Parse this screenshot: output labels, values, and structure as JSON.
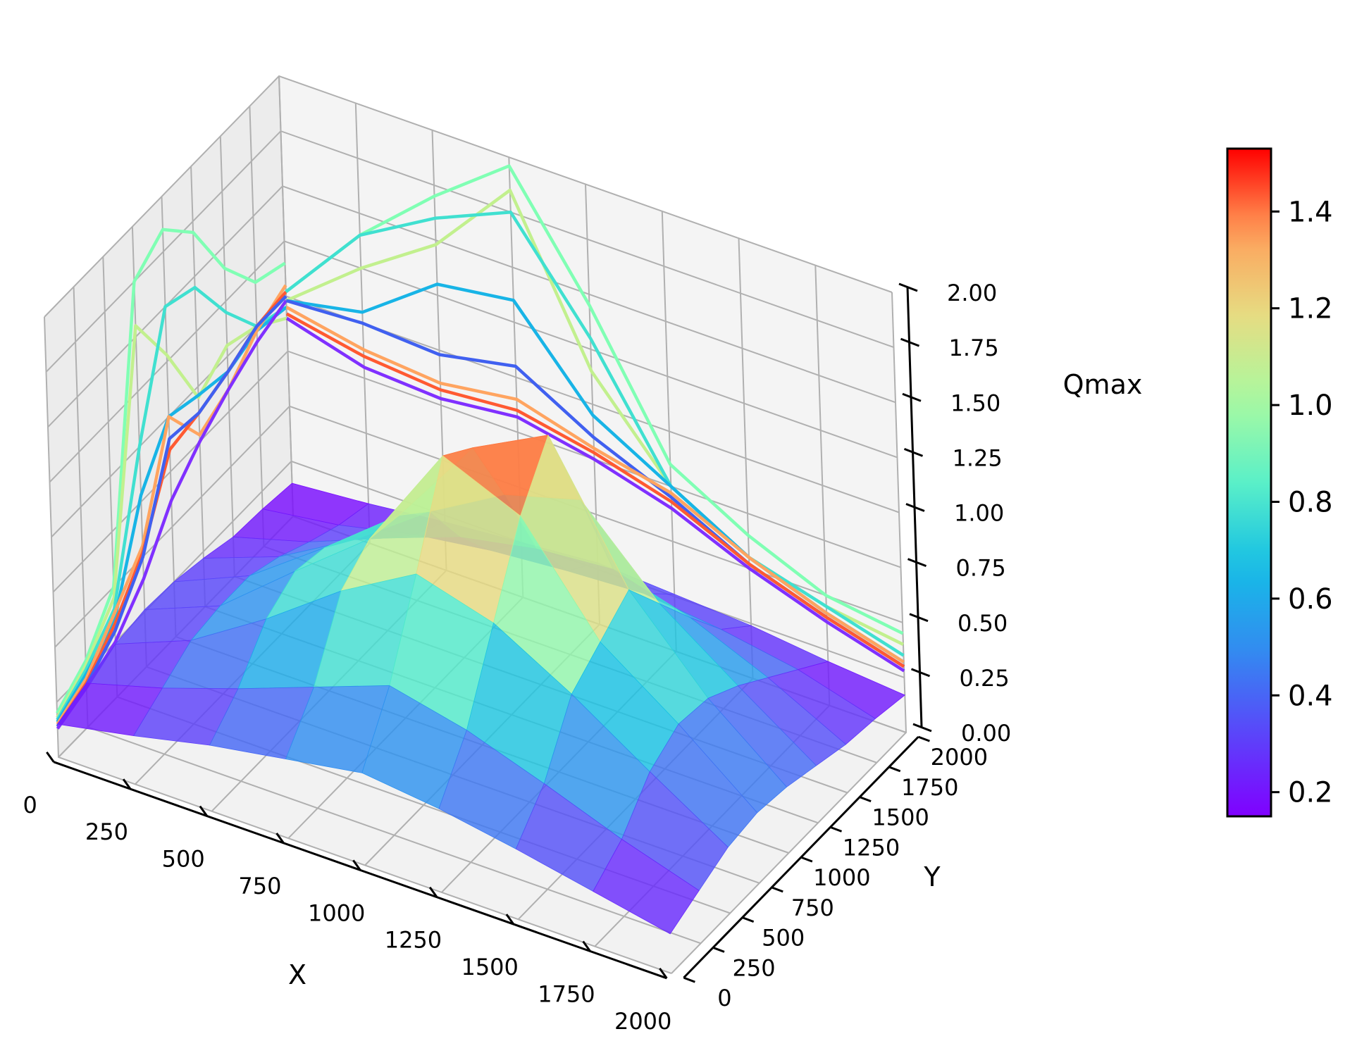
{
  "chart_data": {
    "type": "surface3d",
    "x": [
      0,
      250,
      500,
      750,
      1000,
      1250,
      1500,
      1750,
      2000
    ],
    "y": [
      0,
      250,
      500,
      750,
      1000,
      1250,
      1500,
      1750,
      2000
    ],
    "xlabel": "X",
    "ylabel": "Y",
    "zlabel": "Qmax",
    "xlim": [
      0,
      2000
    ],
    "ylim": [
      0,
      2000
    ],
    "zlim": [
      0,
      2.0
    ],
    "x_ticks": [
      "0",
      "250",
      "500",
      "750",
      "1000",
      "1250",
      "1500",
      "1750",
      "2000"
    ],
    "y_ticks": [
      "0",
      "250",
      "500",
      "750",
      "1000",
      "1250",
      "1500",
      "1750",
      "2000"
    ],
    "z_ticks": [
      "0.00",
      "0.25",
      "0.50",
      "0.75",
      "1.00",
      "1.25",
      "1.50",
      "1.75",
      "2.00"
    ],
    "colorbar": {
      "colormap": "rainbow",
      "min": 0.15,
      "max": 1.53,
      "ticks": [
        "0.2",
        "0.4",
        "0.6",
        "0.8",
        "1.0",
        "1.2",
        "1.4"
      ]
    },
    "grid": true,
    "z": [
      [
        0.15,
        0.22,
        0.3,
        0.36,
        0.42,
        0.38,
        0.32,
        0.25,
        0.18
      ],
      [
        0.2,
        0.3,
        0.42,
        0.55,
        0.68,
        0.6,
        0.48,
        0.35,
        0.24
      ],
      [
        0.24,
        0.38,
        0.6,
        0.85,
        1.05,
        0.95,
        0.75,
        0.52,
        0.3
      ],
      [
        0.26,
        0.4,
        0.68,
        0.95,
        1.45,
        1.3,
        0.85,
        0.6,
        0.32
      ],
      [
        0.25,
        0.4,
        0.65,
        0.92,
        1.35,
        1.53,
        0.95,
        0.58,
        0.3
      ],
      [
        0.22,
        0.35,
        0.55,
        0.8,
        1.0,
        1.1,
        0.75,
        0.5,
        0.26
      ],
      [
        0.18,
        0.28,
        0.42,
        0.55,
        0.62,
        0.65,
        0.55,
        0.4,
        0.22
      ],
      [
        0.17,
        0.22,
        0.3,
        0.35,
        0.38,
        0.4,
        0.36,
        0.3,
        0.2
      ],
      [
        0.15,
        0.18,
        0.22,
        0.25,
        0.28,
        0.26,
        0.24,
        0.2,
        0.17
      ]
    ],
    "wall_lines": [
      {
        "wall": "x",
        "color": "#80ffb4",
        "values": [
          0.2,
          0.3,
          0.5,
          1.75,
          1.85,
          1.7,
          1.4,
          1.2,
          1.15
        ]
      },
      {
        "wall": "x",
        "color": "#c2f08e",
        "values": [
          0.18,
          0.28,
          0.45,
          1.55,
          1.28,
          0.95,
          1.05,
          1.0,
          0.9
        ]
      },
      {
        "wall": "x",
        "color": "#40e0d0",
        "values": [
          0.17,
          0.26,
          0.4,
          1.0,
          1.5,
          1.45,
          1.2,
          1.0,
          0.95
        ]
      },
      {
        "wall": "x",
        "color": "#18b4e6",
        "values": [
          0.16,
          0.24,
          0.35,
          0.78,
          1.0,
          0.96,
          0.93,
          0.98,
          0.95
        ]
      },
      {
        "wall": "x",
        "color": "#ffa460",
        "values": [
          0.15,
          0.22,
          0.38,
          0.55,
          1.0,
          0.78,
          0.85,
          0.98,
          1.05
        ]
      },
      {
        "wall": "x",
        "color": "#ff5a32",
        "values": [
          0.14,
          0.2,
          0.33,
          0.52,
          0.85,
          0.88,
          0.93,
          1.0,
          1.02
        ]
      },
      {
        "wall": "x",
        "color": "#4060f0",
        "values": [
          0.14,
          0.19,
          0.3,
          0.5,
          0.9,
          0.88,
          0.93,
          1.0,
          1.0
        ]
      },
      {
        "wall": "x",
        "color": "#8030ff",
        "values": [
          0.13,
          0.18,
          0.25,
          0.4,
          0.62,
          0.75,
          0.85,
          0.93,
          0.98
        ]
      },
      {
        "wall": "y",
        "color": "#80ffb4",
        "values": [
          1.02,
          1.4,
          1.7,
          1.96,
          1.45,
          0.85,
          0.65,
          0.5,
          0.45
        ]
      },
      {
        "wall": "y",
        "color": "#c2f08e",
        "values": [
          0.98,
          1.25,
          1.48,
          1.85,
          1.15,
          0.75,
          0.55,
          0.45,
          0.4
        ]
      },
      {
        "wall": "y",
        "color": "#40e0d0",
        "values": [
          1.02,
          1.4,
          1.6,
          1.75,
          1.3,
          0.75,
          0.55,
          0.45,
          0.35
        ]
      },
      {
        "wall": "y",
        "color": "#18b4e6",
        "values": [
          0.98,
          1.05,
          1.3,
          1.35,
          0.95,
          0.75,
          0.55,
          0.42,
          0.32
        ]
      },
      {
        "wall": "y",
        "color": "#4060f0",
        "values": [
          0.98,
          1.0,
          0.98,
          1.05,
          0.85,
          0.7,
          0.52,
          0.4,
          0.3
        ]
      },
      {
        "wall": "y",
        "color": "#ffa460",
        "values": [
          0.95,
          0.88,
          0.85,
          0.9,
          0.8,
          0.72,
          0.55,
          0.42,
          0.32
        ]
      },
      {
        "wall": "y",
        "color": "#ff5a32",
        "values": [
          0.92,
          0.85,
          0.82,
          0.85,
          0.78,
          0.68,
          0.52,
          0.4,
          0.3
        ]
      },
      {
        "wall": "y",
        "color": "#8030ff",
        "values": [
          0.9,
          0.8,
          0.78,
          0.82,
          0.75,
          0.65,
          0.5,
          0.38,
          0.28
        ]
      }
    ]
  }
}
